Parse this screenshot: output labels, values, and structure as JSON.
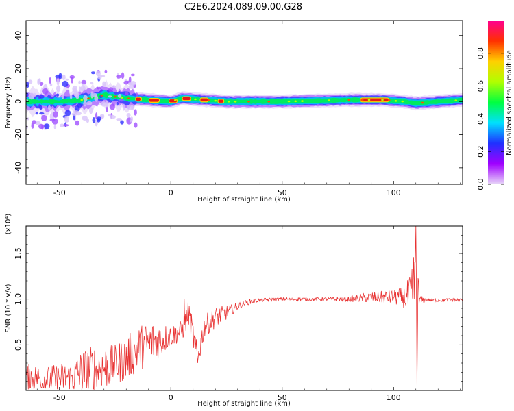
{
  "title": "C2E6.2024.089.09.00.G28",
  "chart_data": [
    {
      "type": "heatmap",
      "name": "spectrogram",
      "xlabel": "Height of straight line (km)",
      "ylabel": "Frequency (Hz)",
      "xlim": [
        -65,
        131
      ],
      "ylim": [
        -50,
        49
      ],
      "xticks": [
        -50,
        0,
        50,
        100
      ],
      "yticks": [
        -40,
        -20,
        0,
        20,
        40
      ],
      "xtick_labels": [
        "-50",
        "0",
        "50",
        "100"
      ],
      "ytick_labels": [
        "-40",
        "-20",
        "0",
        "20",
        "40"
      ],
      "colorbar": {
        "label": "Normalized spectral amplitude",
        "range": [
          0.0,
          1.0
        ],
        "ticks": [
          0.0,
          0.2,
          0.4,
          0.6,
          0.8
        ],
        "tick_labels": [
          "0.0",
          "0.2",
          "0.4",
          "0.6",
          "0.8"
        ],
        "colors": [
          "#e8d8f8",
          "#a000ff",
          "#2030ff",
          "#00e0ff",
          "#00ff40",
          "#b0ff00",
          "#ffd000",
          "#ff3000",
          "#ff0090"
        ]
      },
      "band": {
        "center_hz": [
          [
            -65,
            0
          ],
          [
            -50,
            0
          ],
          [
            -40,
            1
          ],
          [
            -30,
            4
          ],
          [
            -20,
            2
          ],
          [
            -10,
            1
          ],
          [
            0,
            0
          ],
          [
            5,
            2
          ],
          [
            15,
            1
          ],
          [
            25,
            0
          ],
          [
            50,
            0
          ],
          [
            80,
            1
          ],
          [
            95,
            1
          ],
          [
            105,
            0
          ],
          [
            110,
            -1
          ],
          [
            120,
            0
          ],
          [
            131,
            1
          ]
        ],
        "peak_segments": [
          [
            -16,
            -13
          ],
          [
            -10,
            -5
          ],
          [
            -1,
            3
          ],
          [
            5,
            9
          ],
          [
            13,
            17
          ],
          [
            21,
            24
          ],
          [
            85,
            98
          ]
        ]
      }
    },
    {
      "type": "line",
      "name": "snr",
      "xlabel": "Height of straight line (km)",
      "ylabel": "SNR (10 * v/v)",
      "y_scale_label": "(x10⁴)",
      "xlim": [
        -65,
        131
      ],
      "ylim": [
        0,
        1.8
      ],
      "xticks": [
        -50,
        0,
        50,
        100
      ],
      "yticks": [
        0.5,
        1.0,
        1.5
      ],
      "xtick_labels": [
        "-50",
        "0",
        "50",
        "100"
      ],
      "ytick_labels": [
        "0.5",
        "1.0",
        "1.5"
      ],
      "color": "#e83232",
      "envelope": {
        "x": [
          -65,
          -55,
          -45,
          -40,
          -35,
          -30,
          -25,
          -20,
          -15,
          -10,
          -5,
          0,
          5,
          8,
          12,
          15,
          20,
          25,
          30,
          35,
          40,
          50,
          60,
          70,
          80,
          90,
          100,
          105,
          108,
          110,
          112,
          115,
          120,
          131
        ],
        "mean": [
          0.15,
          0.12,
          0.14,
          0.2,
          0.25,
          0.25,
          0.28,
          0.35,
          0.45,
          0.52,
          0.55,
          0.6,
          0.65,
          0.85,
          0.35,
          0.7,
          0.8,
          0.85,
          0.92,
          0.97,
          0.99,
          1.0,
          1.0,
          1.0,
          1.0,
          1.02,
          1.02,
          1.02,
          1.0,
          1.0,
          0.99,
          0.99,
          0.99,
          0.99
        ],
        "amp": [
          0.15,
          0.15,
          0.18,
          0.25,
          0.25,
          0.25,
          0.22,
          0.25,
          0.25,
          0.25,
          0.2,
          0.12,
          0.12,
          0.15,
          0.15,
          0.12,
          0.12,
          0.08,
          0.04,
          0.03,
          0.02,
          0.02,
          0.02,
          0.02,
          0.03,
          0.06,
          0.08,
          0.12,
          0.3,
          0.6,
          0.05,
          0.02,
          0.02,
          0.02
        ]
      },
      "spikes": [
        [
          109,
          1.46
        ],
        [
          110,
          1.8
        ],
        [
          110.5,
          0.05
        ],
        [
          107,
          1.2
        ],
        [
          6,
          1.0
        ],
        [
          12,
          0.3
        ]
      ]
    }
  ]
}
